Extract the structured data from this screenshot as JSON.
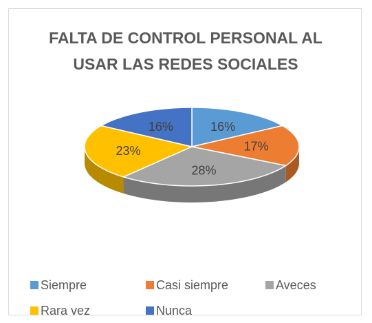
{
  "chart_data": {
    "type": "pie3d",
    "title": "FALTA DE CONTROL PERSONAL AL USAR LAS REDES SOCIALES",
    "categories": [
      "Siempre",
      "Casi siempre",
      "Aveces",
      "Rara vez",
      "Nunca"
    ],
    "values": [
      16,
      17,
      28,
      23,
      16
    ],
    "value_labels": [
      "16%",
      "17%",
      "28%",
      "23%",
      "16%"
    ],
    "colors": [
      "#5b9bd5",
      "#ed7d31",
      "#a5a5a5",
      "#ffc000",
      "#4472c4"
    ],
    "legend": "bottom"
  }
}
